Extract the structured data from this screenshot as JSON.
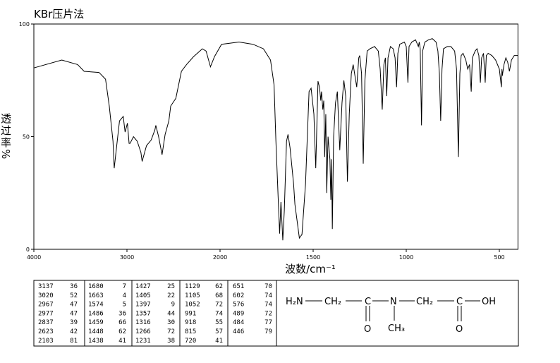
{
  "chart_data": {
    "type": "line",
    "title": "KBr压片法",
    "x_label": "波数/cm⁻¹",
    "y_label": "透过率%",
    "color": "#000000",
    "xlim": [
      4000,
      400
    ],
    "xticks": [
      4000,
      3000,
      2000,
      1500,
      1000,
      500
    ],
    "ylim": [
      0,
      100
    ],
    "yticks": [
      0,
      50,
      100
    ],
    "x": [
      4000,
      3700,
      3530,
      3460,
      3300,
      3230,
      3190,
      3150,
      3137,
      3110,
      3080,
      3040,
      3020,
      2995,
      2977,
      2967,
      2930,
      2890,
      2850,
      2837,
      2790,
      2740,
      2700,
      2690,
      2660,
      2623,
      2590,
      2550,
      2530,
      2475,
      2415,
      2360,
      2285,
      2190,
      2150,
      2103,
      2060,
      1992,
      1898,
      1823,
      1767,
      1729,
      1710,
      1700,
      1688,
      1680,
      1673,
      1663,
      1655,
      1643,
      1635,
      1624,
      1605,
      1598,
      1574,
      1560,
      1541,
      1522,
      1511,
      1496,
      1486,
      1474,
      1466,
      1459,
      1455,
      1448,
      1443,
      1438,
      1432,
      1427,
      1420,
      1410,
      1405,
      1401,
      1397,
      1390,
      1380,
      1370,
      1357,
      1345,
      1335,
      1325,
      1316,
      1306,
      1295,
      1285,
      1266,
      1255,
      1250,
      1240,
      1231,
      1222,
      1210,
      1195,
      1170,
      1150,
      1140,
      1129,
      1120,
      1112,
      1105,
      1098,
      1085,
      1070,
      1060,
      1052,
      1045,
      1035,
      1010,
      1000,
      991,
      985,
      970,
      950,
      940,
      935,
      930,
      925,
      918,
      912,
      900,
      880,
      860,
      840,
      830,
      822,
      815,
      808,
      800,
      780,
      760,
      740,
      730,
      720,
      712,
      705,
      695,
      680,
      670,
      660,
      655,
      651,
      645,
      630,
      620,
      610,
      602,
      595,
      585,
      576,
      570,
      560,
      540,
      520,
      500,
      489,
      486,
      484,
      475,
      465,
      455,
      446,
      435,
      420,
      400
    ],
    "values": [
      80.5,
      84,
      82,
      79,
      78.5,
      75.5,
      63.6,
      48,
      36,
      46,
      57,
      59,
      52,
      56,
      47,
      47,
      50,
      48,
      43,
      39,
      46,
      48.5,
      53,
      55,
      50,
      42,
      51,
      57,
      63.6,
      67,
      79,
      82,
      85.5,
      89,
      88,
      81,
      85.5,
      91,
      92,
      91,
      89,
      84,
      73,
      48,
      23,
      7,
      21,
      4,
      17,
      48,
      51,
      45,
      29,
      20,
      5,
      6.6,
      29,
      70,
      71.5,
      60,
      36,
      74.6,
      72,
      66,
      70,
      62,
      66,
      41,
      60,
      25,
      50,
      40,
      22,
      40,
      9,
      50,
      65,
      70,
      44,
      65,
      75,
      68,
      30,
      60,
      78,
      82,
      72,
      85,
      86,
      78,
      38,
      75,
      88,
      89,
      90,
      88,
      80,
      62,
      82,
      85,
      68,
      85,
      90,
      89,
      85,
      72,
      87,
      91,
      92,
      90,
      74,
      90,
      92,
      93,
      91,
      90,
      92,
      89,
      55,
      88,
      92,
      93,
      93.5,
      92,
      88,
      78,
      57,
      80,
      89,
      90,
      90,
      88,
      80,
      41,
      78,
      86,
      87,
      84,
      80,
      82,
      75,
      70,
      85,
      88,
      89,
      86,
      74,
      85,
      87,
      74,
      86,
      87,
      86,
      84,
      80,
      72,
      80,
      77,
      82,
      85,
      83,
      79,
      84,
      86,
      86
    ]
  },
  "peak_table": {
    "rows": [
      [
        "3137",
        "36"
      ],
      [
        "3020",
        "52"
      ],
      [
        "2967",
        "47"
      ],
      [
        "2977",
        "47"
      ],
      [
        "2837",
        "39"
      ],
      [
        "2623",
        "42"
      ],
      [
        "2103",
        "81"
      ],
      [
        "1680",
        "7"
      ],
      [
        "1663",
        "4"
      ],
      [
        "1574",
        "5"
      ],
      [
        "1486",
        "36"
      ],
      [
        "1459",
        "66"
      ],
      [
        "1448",
        "62"
      ],
      [
        "1438",
        "41"
      ],
      [
        "1427",
        "25"
      ],
      [
        "1405",
        "22"
      ],
      [
        "1397",
        "9"
      ],
      [
        "1357",
        "44"
      ],
      [
        "1316",
        "30"
      ],
      [
        "1266",
        "72"
      ],
      [
        "1231",
        "38"
      ],
      [
        "1129",
        "62"
      ],
      [
        "1105",
        "68"
      ],
      [
        "1052",
        "72"
      ],
      [
        "991",
        "74"
      ],
      [
        "918",
        "55"
      ],
      [
        "815",
        "57"
      ],
      [
        "720",
        "41"
      ],
      [
        "651",
        "70"
      ],
      [
        "602",
        "74"
      ],
      [
        "576",
        "74"
      ],
      [
        "489",
        "72"
      ],
      [
        "484",
        "77"
      ],
      [
        "446",
        "79"
      ]
    ]
  },
  "structure": {
    "labels": [
      "H₂N",
      "CH₂",
      "C",
      "O",
      "N",
      "CH₃",
      "CH₂",
      "C",
      "O",
      "OH"
    ]
  }
}
